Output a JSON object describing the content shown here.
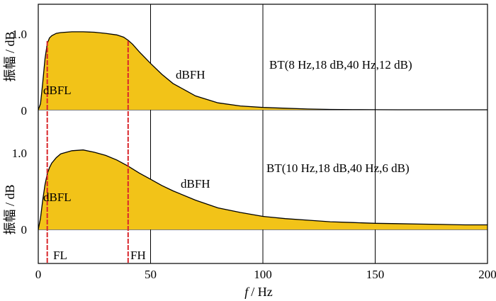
{
  "chart_data": {
    "type": "area",
    "x_axis": {
      "label_var": "f",
      "label_unit": "/ Hz",
      "range": [
        0,
        200
      ],
      "ticks": [
        0,
        50,
        100,
        150,
        200
      ]
    },
    "fill_color": "#F2C318",
    "marker_color": "#D9262B",
    "panels": [
      {
        "ylabel": "振幅 / dB",
        "ylim": [
          0,
          1.0
        ],
        "yticks": [
          {
            "value": 0,
            "label": "0"
          },
          {
            "value": 1.0,
            "label": "1.0"
          }
        ],
        "annotation": "BT(8 Hz,18 dB,40 Hz,12 dB)",
        "series_labels": {
          "low": "dBFL",
          "high": "dBFH"
        },
        "curve": {
          "x": [
            0,
            1,
            2,
            3,
            4,
            5,
            6,
            8,
            10,
            15,
            20,
            25,
            30,
            35,
            38,
            40,
            42,
            45,
            50,
            55,
            60,
            70,
            80,
            90,
            100,
            110,
            120,
            130,
            140,
            150,
            160,
            200
          ],
          "y": [
            0,
            0.08,
            0.35,
            0.66,
            0.86,
            0.93,
            0.96,
            0.99,
            1.0,
            1.01,
            1.01,
            1.005,
            0.99,
            0.97,
            0.94,
            0.9,
            0.85,
            0.75,
            0.6,
            0.46,
            0.34,
            0.18,
            0.09,
            0.05,
            0.03,
            0.02,
            0.01,
            0.005,
            0.002,
            0.001,
            0,
            0
          ]
        }
      },
      {
        "ylabel": "振幅 / dB",
        "ylim": [
          0,
          1.0
        ],
        "yticks": [
          {
            "value": 0,
            "label": "0"
          },
          {
            "value": 1.0,
            "label": "1.0"
          }
        ],
        "annotation": "BT(10 Hz,18 dB,40 Hz,6 dB)",
        "series_labels": {
          "low": "dBFL",
          "high": "dBFH"
        },
        "curve": {
          "x": [
            0,
            1,
            2,
            3,
            4,
            5,
            6,
            8,
            10,
            15,
            20,
            25,
            30,
            35,
            40,
            45,
            50,
            55,
            60,
            70,
            80,
            90,
            100,
            110,
            120,
            130,
            140,
            150,
            160,
            170,
            180,
            190,
            200
          ],
          "y": [
            0,
            0.15,
            0.38,
            0.58,
            0.72,
            0.8,
            0.86,
            0.93,
            0.98,
            1.02,
            1.03,
            1.0,
            0.96,
            0.9,
            0.82,
            0.73,
            0.65,
            0.57,
            0.5,
            0.38,
            0.28,
            0.22,
            0.17,
            0.14,
            0.12,
            0.1,
            0.09,
            0.08,
            0.075,
            0.07,
            0.065,
            0.06,
            0.06
          ]
        }
      }
    ],
    "markers": [
      {
        "name": "FL",
        "x": 4
      },
      {
        "name": "FH",
        "x": 40
      }
    ]
  }
}
